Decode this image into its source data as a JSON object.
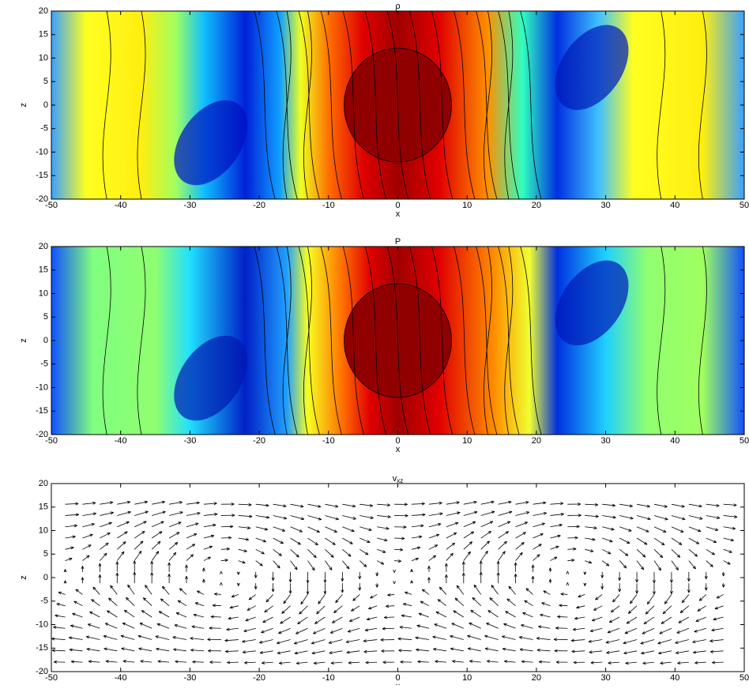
{
  "chart_data": [
    {
      "type": "contour",
      "title": "ρ",
      "xlabel": "x",
      "ylabel": "z",
      "xlim": [
        -50,
        50
      ],
      "ylim": [
        -20,
        20
      ],
      "xticks": [
        -50,
        -40,
        -30,
        -20,
        -10,
        0,
        10,
        20,
        30,
        40,
        50
      ],
      "yticks": [
        -20,
        -15,
        -10,
        -5,
        0,
        5,
        10,
        15,
        20
      ]
    },
    {
      "type": "contour",
      "title": "P",
      "xlabel": "x",
      "ylabel": "z",
      "xlim": [
        -50,
        50
      ],
      "ylim": [
        -20,
        20
      ],
      "xticks": [
        -50,
        -40,
        -30,
        -20,
        -10,
        0,
        10,
        20,
        30,
        40,
        50
      ],
      "yticks": [
        -20,
        -15,
        -10,
        -5,
        0,
        5,
        10,
        15,
        20
      ]
    },
    {
      "type": "quiver",
      "title": "v",
      "title_subscript": "xz",
      "xlabel": "x",
      "ylabel": "z",
      "xlim": [
        -50,
        50
      ],
      "ylim": [
        -20,
        20
      ],
      "xticks": [
        -50,
        -40,
        -30,
        -20,
        -10,
        0,
        10,
        20,
        30,
        40,
        50
      ],
      "yticks": [
        -20,
        -15,
        -10,
        -5,
        0,
        5,
        10,
        15,
        20
      ]
    }
  ]
}
